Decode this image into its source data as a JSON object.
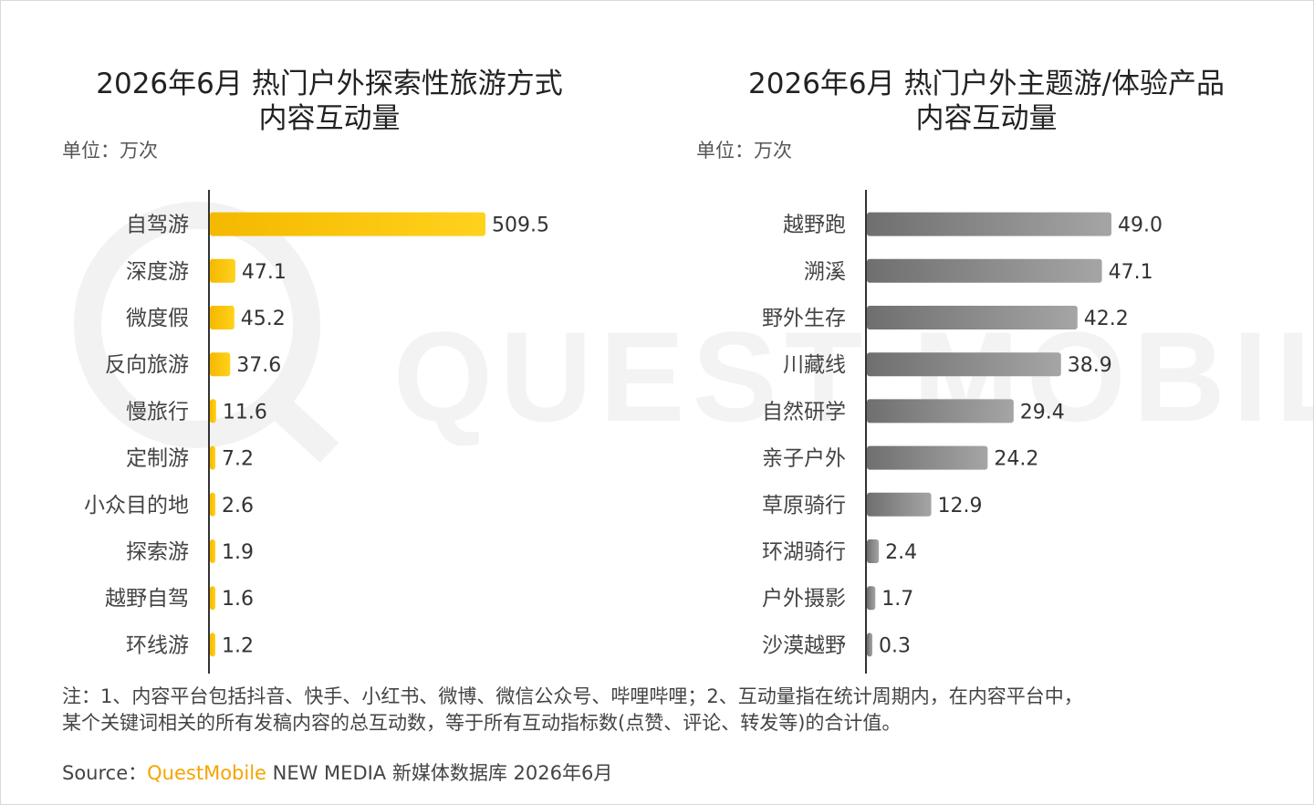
{
  "charts": [
    {
      "title_lines": [
        "2026年6月 热门户外探索性旅游方式",
        "内容互动量"
      ],
      "unit": "单位：万次"
    },
    {
      "title_lines": [
        "2026年6月 热门户外主题游/体验产品",
        "内容互动量"
      ],
      "unit": "单位：万次"
    }
  ],
  "chart_data": [
    {
      "type": "bar",
      "orientation": "horizontal",
      "title": "2026年6月 热门户外探索性旅游方式 内容互动量",
      "unit": "单位：万次",
      "color": "#fcc200",
      "categories": [
        "自驾游",
        "深度游",
        "微度假",
        "反向旅游",
        "慢旅行",
        "定制游",
        "小众目的地",
        "探索游",
        "越野自驾",
        "环线游"
      ],
      "values": [
        509.5,
        47.1,
        45.2,
        37.6,
        11.6,
        7.2,
        2.6,
        1.9,
        1.6,
        1.2
      ],
      "value_labels": [
        "509.5",
        "47.1",
        "45.2",
        "37.6",
        "11.6",
        "7.2",
        "2.6",
        "1.9",
        "1.6",
        "1.2"
      ],
      "xlim": [
        0,
        509.5
      ],
      "grid": false,
      "legend": "none"
    },
    {
      "type": "bar",
      "orientation": "horizontal",
      "title": "2026年6月 热门户外主题游/体验产品 内容互动量",
      "unit": "单位：万次",
      "color": "#8a8a8a",
      "categories": [
        "越野跑",
        "溯溪",
        "野外生存",
        "川藏线",
        "自然研学",
        "亲子户外",
        "草原骑行",
        "环湖骑行",
        "户外摄影",
        "沙漠越野"
      ],
      "values": [
        49.0,
        47.1,
        42.2,
        38.9,
        29.4,
        24.2,
        12.9,
        2.4,
        1.7,
        0.3
      ],
      "value_labels": [
        "49.0",
        "47.1",
        "42.2",
        "38.9",
        "29.4",
        "24.2",
        "12.9",
        "2.4",
        "1.7",
        "0.3"
      ],
      "xlim": [
        0,
        49.0
      ],
      "grid": false,
      "legend": "none"
    }
  ],
  "note": {
    "line1": "注：1、内容平台包括抖音、快手、小红书、微博、微信公众号、哔哩哔哩；2、互动量指在统计周期内，在内容平台中，",
    "line2": "某个关键词相关的所有发稿内容的总互动数，等于所有互动指标数(点赞、评论、转发等)的合计值。"
  },
  "source": {
    "prefix": "Source：",
    "brand": "QuestMobile",
    "rest": " NEW MEDIA 新媒体数据库 2026年6月"
  },
  "watermark": {
    "text": "QUEST MOBILE",
    "color": "#f0f0f0"
  }
}
